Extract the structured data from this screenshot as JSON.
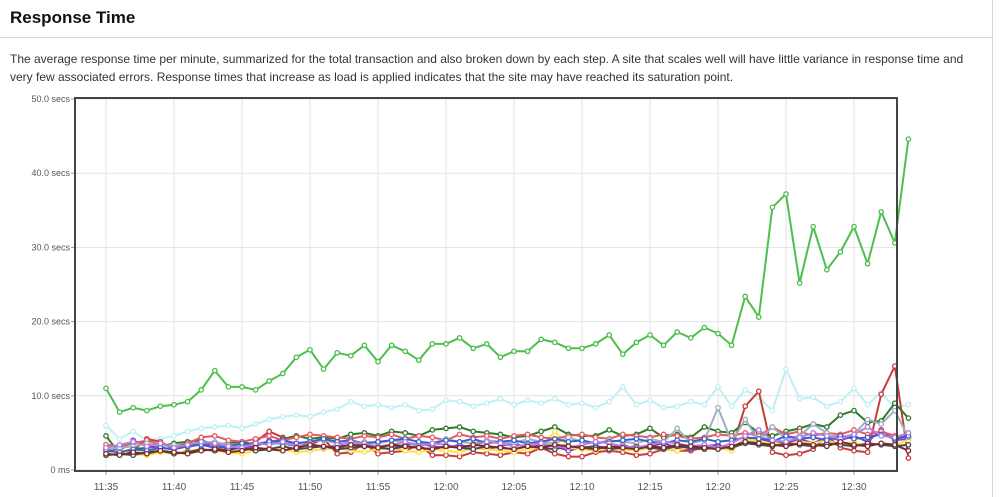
{
  "section": {
    "title": "Response Time",
    "description": "The average response time per minute, summarized for the total transaction and also broken down by each step. A site that scales well will have little variance in response time and very few associated errors. Response times that increase as load is applied indicates that the site may have reached its saturation point."
  },
  "chart_data": {
    "type": "line",
    "title": "",
    "xlabel": "",
    "ylabel": "",
    "ylim": [
      0,
      50
    ],
    "yticks": [
      0,
      10,
      20,
      30,
      40,
      50
    ],
    "ytick_labels": [
      "0 ms",
      "10.0 secs",
      "20.0 secs",
      "30.0 secs",
      "40.0 secs",
      "50.0 secs"
    ],
    "x_start": "11:35",
    "x_end": "12:32",
    "xtick_labels": [
      "11:35",
      "11:40",
      "11:45",
      "11:50",
      "11:55",
      "12:00",
      "12:05",
      "12:10",
      "12:15",
      "12:20",
      "12:25",
      "12:30"
    ],
    "grid": true,
    "legend": "none",
    "series": [
      {
        "color": "#4cbf4c",
        "values": [
          11.0,
          7.8,
          8.4,
          8.0,
          8.6,
          8.8,
          9.2,
          10.8,
          13.4,
          11.2,
          11.2,
          10.8,
          12.0,
          13.0,
          15.2,
          16.2,
          13.6,
          15.8,
          15.4,
          16.8,
          14.6,
          16.8,
          16.0,
          14.8,
          17.0,
          17.0,
          17.8,
          16.4,
          17.0,
          15.2,
          16.0,
          16.0,
          17.6,
          17.2,
          16.4,
          16.4,
          17.0,
          18.2,
          15.6,
          17.2,
          18.2,
          16.8,
          18.6,
          17.8,
          19.2,
          18.4,
          16.8,
          23.4,
          20.6,
          35.4,
          37.2,
          25.2,
          32.8,
          27.0,
          29.4,
          32.8,
          27.8,
          34.8,
          30.6,
          44.6
        ]
      },
      {
        "color": "#c0eff4",
        "values": [
          6.0,
          4.2,
          5.2,
          4.0,
          4.2,
          4.6,
          5.2,
          5.6,
          5.8,
          6.0,
          5.6,
          6.2,
          6.8,
          7.2,
          7.4,
          7.2,
          7.8,
          8.2,
          9.2,
          8.6,
          8.8,
          8.4,
          8.8,
          8.0,
          8.2,
          9.4,
          9.2,
          8.6,
          9.0,
          9.6,
          8.8,
          9.4,
          9.0,
          9.6,
          8.8,
          9.0,
          8.4,
          9.2,
          11.2,
          8.8,
          9.4,
          8.4,
          8.6,
          9.2,
          8.8,
          11.2,
          8.6,
          10.8,
          9.8,
          8.0,
          13.6,
          9.6,
          9.8,
          8.6,
          9.2,
          11.0,
          8.8,
          10.4,
          8.4,
          8.8
        ]
      },
      {
        "color": "#c83c3c",
        "values": [
          3.0,
          2.4,
          2.6,
          4.2,
          3.8,
          2.8,
          3.2,
          3.6,
          3.0,
          2.6,
          3.2,
          3.8,
          5.2,
          4.4,
          3.0,
          3.4,
          4.2,
          2.2,
          2.4,
          3.6,
          2.2,
          2.4,
          2.6,
          3.4,
          2.0,
          2.0,
          1.8,
          2.4,
          2.2,
          2.0,
          2.4,
          2.2,
          3.0,
          2.2,
          1.8,
          1.8,
          2.4,
          2.6,
          2.4,
          2.0,
          2.2,
          2.8,
          2.6,
          2.6,
          3.0,
          3.2,
          2.8,
          8.6,
          10.6,
          2.4,
          2.0,
          2.2,
          2.8,
          4.6,
          3.0,
          2.6,
          2.4,
          10.2,
          14.0,
          1.6
        ]
      },
      {
        "color": "#2e7a2e",
        "values": [
          4.6,
          2.2,
          2.8,
          3.0,
          3.2,
          3.6,
          3.8,
          4.0,
          3.4,
          3.6,
          3.8,
          3.4,
          3.6,
          4.2,
          4.6,
          4.2,
          4.4,
          4.2,
          4.8,
          5.0,
          4.6,
          5.2,
          5.0,
          4.6,
          5.4,
          5.6,
          5.8,
          5.2,
          5.0,
          4.8,
          4.4,
          4.6,
          5.2,
          5.8,
          4.8,
          4.6,
          4.6,
          5.4,
          4.6,
          4.8,
          5.6,
          4.4,
          4.8,
          4.4,
          5.8,
          5.2,
          5.0,
          6.4,
          5.0,
          4.6,
          5.2,
          5.6,
          6.2,
          5.8,
          7.4,
          8.0,
          6.4,
          6.6,
          9.0,
          7.0
        ]
      },
      {
        "color": "#8d3cd6",
        "values": [
          2.8,
          2.6,
          4.0,
          3.2,
          3.0,
          2.8,
          3.6,
          3.4,
          3.6,
          2.8,
          3.0,
          3.2,
          4.0,
          3.6,
          3.2,
          3.4,
          3.0,
          3.2,
          3.4,
          3.6,
          2.8,
          3.0,
          3.4,
          3.6,
          3.2,
          3.0,
          3.4,
          3.0,
          2.8,
          3.2,
          3.6,
          3.0,
          3.4,
          3.2,
          2.6,
          3.0,
          3.2,
          3.0,
          3.4,
          2.8,
          3.2,
          3.6,
          3.0,
          2.8,
          3.2,
          3.4,
          2.8,
          4.2,
          4.4,
          4.0,
          3.6,
          4.2,
          3.6,
          4.4,
          4.0,
          4.6,
          3.8,
          5.4,
          4.0,
          4.2
        ]
      },
      {
        "color": "#ffe23c",
        "values": [
          2.4,
          2.6,
          2.2,
          2.0,
          2.4,
          2.2,
          2.6,
          2.8,
          2.6,
          2.4,
          2.2,
          2.6,
          3.0,
          2.8,
          2.4,
          2.6,
          2.8,
          3.0,
          2.6,
          2.4,
          2.8,
          3.0,
          2.6,
          2.4,
          2.8,
          2.6,
          2.4,
          3.0,
          2.8,
          2.6,
          2.4,
          2.8,
          3.0,
          5.2,
          3.0,
          2.8,
          2.6,
          3.0,
          2.8,
          2.6,
          3.0,
          2.8,
          2.6,
          3.2,
          2.8,
          3.0,
          2.6,
          4.2,
          3.8,
          3.6,
          3.4,
          3.8,
          3.6,
          4.0,
          3.4,
          3.8,
          3.2,
          3.6,
          3.4,
          4.0
        ]
      },
      {
        "color": "#e8595f",
        "values": [
          3.4,
          3.2,
          3.6,
          4.0,
          3.4,
          3.2,
          3.6,
          4.4,
          4.6,
          4.0,
          3.8,
          4.2,
          4.6,
          4.0,
          4.4,
          4.8,
          4.6,
          4.4,
          4.2,
          4.6,
          4.4,
          4.8,
          4.2,
          4.6,
          4.4,
          4.0,
          4.8,
          4.4,
          4.6,
          4.2,
          4.6,
          4.8,
          4.4,
          4.2,
          4.6,
          4.8,
          4.4,
          4.2,
          4.8,
          4.6,
          4.4,
          4.8,
          4.6,
          4.2,
          4.4,
          4.8,
          4.6,
          5.0,
          4.6,
          5.8,
          4.8,
          5.2,
          4.6,
          5.0,
          4.8,
          5.4,
          4.8,
          5.2,
          4.6,
          4.4
        ]
      },
      {
        "color": "#9eb0bc",
        "values": [
          2.8,
          3.0,
          3.2,
          3.6,
          3.2,
          3.4,
          3.0,
          3.6,
          3.8,
          3.4,
          3.2,
          3.6,
          3.8,
          3.4,
          3.6,
          3.8,
          4.0,
          3.6,
          3.4,
          3.8,
          3.6,
          4.0,
          3.8,
          3.4,
          3.6,
          4.2,
          3.8,
          3.6,
          4.0,
          3.8,
          3.6,
          4.2,
          3.8,
          3.6,
          4.4,
          3.8,
          3.6,
          4.0,
          3.8,
          3.6,
          4.2,
          3.8,
          5.6,
          3.6,
          4.0,
          8.4,
          3.8,
          6.8,
          4.0,
          5.8,
          4.2,
          4.6,
          6.2,
          5.0,
          4.4,
          4.8,
          6.8,
          6.2,
          8.0,
          4.4
        ]
      },
      {
        "color": "#4a4a4a",
        "values": [
          2.0,
          2.2,
          2.0,
          2.4,
          2.6,
          2.2,
          2.4,
          2.8,
          2.6,
          2.8,
          3.0,
          2.6,
          2.8,
          3.2,
          2.8,
          3.0,
          3.2,
          2.8,
          3.0,
          3.2,
          3.0,
          2.8,
          3.2,
          3.0,
          2.8,
          3.2,
          3.0,
          2.8,
          3.2,
          3.0,
          2.8,
          3.2,
          3.0,
          2.8,
          3.2,
          3.0,
          3.2,
          2.8,
          3.0,
          3.2,
          3.0,
          2.8,
          3.2,
          3.0,
          2.8,
          3.2,
          3.0,
          3.6,
          3.4,
          3.2,
          3.6,
          3.4,
          3.2,
          3.6,
          3.4,
          3.2,
          3.6,
          3.4,
          3.2,
          3.4
        ]
      },
      {
        "color": "#3a5fcd",
        "values": [
          2.6,
          2.4,
          2.8,
          2.6,
          3.0,
          2.8,
          3.2,
          3.4,
          3.0,
          3.2,
          3.6,
          3.4,
          3.8,
          4.0,
          3.6,
          3.8,
          4.2,
          3.8,
          4.0,
          3.6,
          3.8,
          4.0,
          4.2,
          3.8,
          3.6,
          4.0,
          3.8,
          4.2,
          3.6,
          3.8,
          4.0,
          3.6,
          3.8,
          4.2,
          3.8,
          4.0,
          3.6,
          3.8,
          4.0,
          4.2,
          3.8,
          3.6,
          4.0,
          3.8,
          4.2,
          3.8,
          4.0,
          4.4,
          4.2,
          3.8,
          4.6,
          4.2,
          4.4,
          4.0,
          4.6,
          4.2,
          4.4,
          4.8,
          4.2,
          4.6
        ]
      },
      {
        "color": "#b080e0",
        "values": [
          3.0,
          3.4,
          3.8,
          3.2,
          3.6,
          3.0,
          3.4,
          3.8,
          3.6,
          3.2,
          3.0,
          3.6,
          3.4,
          3.8,
          3.2,
          3.6,
          3.0,
          3.4,
          3.8,
          3.6,
          3.2,
          3.4,
          3.8,
          3.2,
          3.6,
          3.4,
          3.0,
          3.4,
          3.8,
          3.6,
          3.2,
          3.4,
          3.6,
          3.2,
          3.0,
          3.4,
          3.8,
          3.6,
          3.2,
          3.0,
          3.4,
          3.8,
          3.6,
          3.2,
          3.4,
          3.0,
          3.6,
          4.6,
          5.4,
          4.0,
          3.8,
          4.4,
          5.0,
          4.6,
          4.2,
          4.8,
          5.8,
          4.6,
          4.4,
          5.0
        ]
      },
      {
        "color": "#7a2a2a",
        "values": [
          2.2,
          2.0,
          2.4,
          2.2,
          2.6,
          2.4,
          2.2,
          2.6,
          2.8,
          2.4,
          2.6,
          3.0,
          2.8,
          2.6,
          3.0,
          3.4,
          3.2,
          3.0,
          3.4,
          3.2,
          3.0,
          3.4,
          3.2,
          3.0,
          2.8,
          3.2,
          3.0,
          3.4,
          3.2,
          3.0,
          2.8,
          3.2,
          3.0,
          3.4,
          3.2,
          3.0,
          2.8,
          3.2,
          3.0,
          2.8,
          3.2,
          3.0,
          3.4,
          3.2,
          3.0,
          2.8,
          3.2,
          3.8,
          3.6,
          3.4,
          3.2,
          3.6,
          3.4,
          3.2,
          3.8,
          3.4,
          3.2,
          3.6,
          3.4,
          2.6
        ]
      }
    ]
  }
}
